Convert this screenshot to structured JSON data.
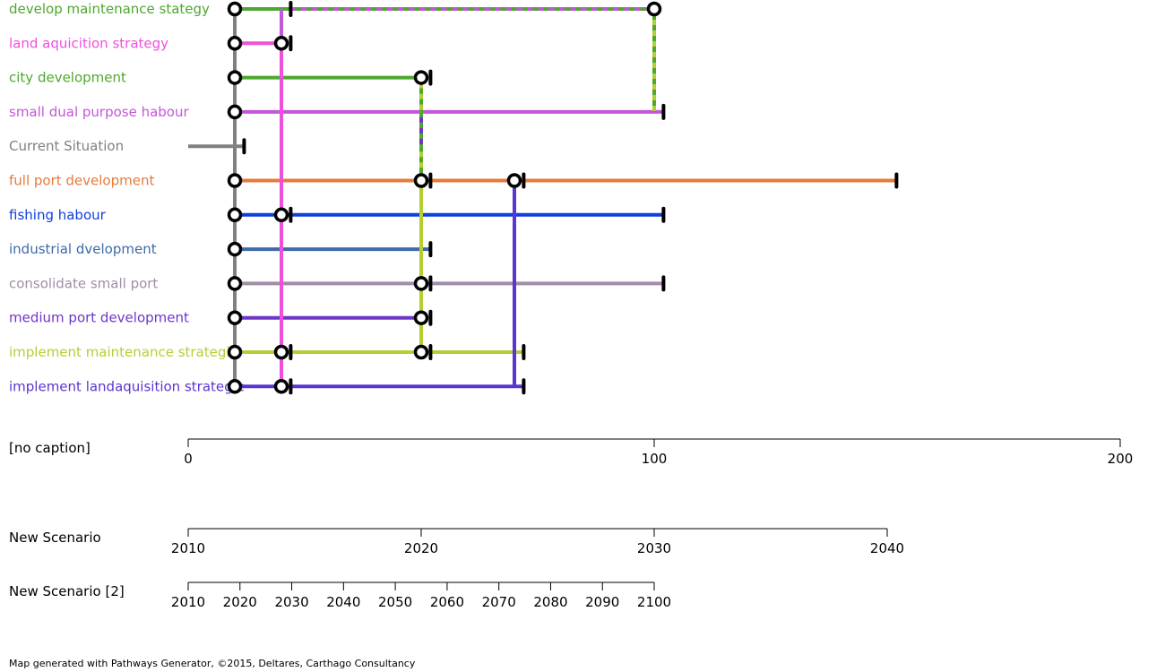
{
  "footer": "Map generated with Pathways Generator, ©2015, Deltares, Carthago Consultancy",
  "chart_data": {
    "type": "adaptation-pathways",
    "actions": [
      {
        "id": "dms",
        "label": "develop maintenance stategy",
        "color": "#4ea72e"
      },
      {
        "id": "las",
        "label": "land aquicition strategy",
        "color": "#ef4fdd"
      },
      {
        "id": "cd",
        "label": "city development",
        "color": "#4ea72e"
      },
      {
        "id": "sdph",
        "label": "small dual purpose habour",
        "color": "#c456d8"
      },
      {
        "id": "cs",
        "label": "Current Situation",
        "color": "#808080"
      },
      {
        "id": "fpd",
        "label": "full port development",
        "color": "#e67a3b"
      },
      {
        "id": "fh",
        "label": "fishing habour",
        "color": "#0f3fdc"
      },
      {
        "id": "id",
        "label": "industrial dvelopment",
        "color": "#3d6aa8"
      },
      {
        "id": "csp",
        "label": "consolidate small port",
        "color": "#a38ca8"
      },
      {
        "id": "mpd",
        "label": "medium port development",
        "color": "#6d35c8"
      },
      {
        "id": "ims",
        "label": "implement maintenance strategie",
        "color": "#b5cf32"
      },
      {
        "id": "ilas",
        "label": "implement landaquisition strategie",
        "color": "#5a35d0"
      }
    ],
    "current": {
      "row": 4,
      "end": 12
    },
    "segments": [
      {
        "row": 0,
        "from": 10,
        "to": 22,
        "color": "#4ea72e"
      },
      {
        "row": 0,
        "from": 22,
        "to": 100,
        "color": "#4ea72e",
        "dash": "#c456d8"
      },
      {
        "row": 1,
        "from": 10,
        "to": 20,
        "color": "#ef4fdd"
      },
      {
        "row": 2,
        "from": 10,
        "to": 50,
        "color": "#4ea72e"
      },
      {
        "row": 3,
        "from": 10,
        "to": 102,
        "color": "#c456d8"
      },
      {
        "row": 5,
        "from": 10,
        "to": 50,
        "color": "#e67a3b"
      },
      {
        "row": 5,
        "from": 50,
        "to": 70,
        "color": "#e67a3b"
      },
      {
        "row": 5,
        "from": 70,
        "to": 152,
        "color": "#e67a3b"
      },
      {
        "row": 6,
        "from": 10,
        "to": 20,
        "color": "#0f3fdc"
      },
      {
        "row": 6,
        "from": 20,
        "to": 102,
        "color": "#0f3fdc"
      },
      {
        "row": 7,
        "from": 10,
        "to": 52,
        "color": "#3d6aa8"
      },
      {
        "row": 8,
        "from": 10,
        "to": 50,
        "color": "#a38ca8"
      },
      {
        "row": 8,
        "from": 50,
        "to": 102,
        "color": "#a38ca8"
      },
      {
        "row": 9,
        "from": 10,
        "to": 50,
        "color": "#6d35c8"
      },
      {
        "row": 10,
        "from": 10,
        "to": 20,
        "color": "#b5cf32"
      },
      {
        "row": 10,
        "from": 20,
        "to": 50,
        "color": "#b5cf32"
      },
      {
        "row": 10,
        "from": 50,
        "to": 72,
        "color": "#b5cf32"
      },
      {
        "row": 11,
        "from": 10,
        "to": 20,
        "color": "#5a35d0"
      },
      {
        "row": 11,
        "from": 20,
        "to": 72,
        "color": "#5a35d0"
      }
    ],
    "transfers": [
      {
        "x": 10,
        "from_row": 0,
        "to_row": 11,
        "color": "#808080"
      },
      {
        "x": 20,
        "from_row": 0,
        "to_row": 1,
        "color": "#c456d8"
      },
      {
        "x": 20,
        "from_row": 1,
        "to_row": 11,
        "color": "#ef4fdd"
      },
      {
        "x": 50,
        "from_row": 2,
        "to_row": 3,
        "color": "#b5cf32",
        "dash": "#4ea72e"
      },
      {
        "x": 50,
        "from_row": 3,
        "to_row": 4,
        "color": "#6d35c8",
        "dash": "#4ea72e"
      },
      {
        "x": 50,
        "from_row": 4,
        "to_row": 5,
        "color": "#b5cf32",
        "dash": "#4ea72e"
      },
      {
        "x": 50,
        "from_row": 5,
        "to_row": 10,
        "color": "#b5cf32"
      },
      {
        "x": 70,
        "from_row": 5,
        "to_row": 11,
        "color": "#5a35d0"
      },
      {
        "x": 100,
        "from_row": 0,
        "to_row": 3,
        "color": "#4ea72e",
        "dash": "#b5cf32"
      }
    ],
    "nodes": [
      {
        "row": 0,
        "x": 10
      },
      {
        "row": 1,
        "x": 10
      },
      {
        "row": 2,
        "x": 10
      },
      {
        "row": 3,
        "x": 10
      },
      {
        "row": 5,
        "x": 10
      },
      {
        "row": 6,
        "x": 10
      },
      {
        "row": 7,
        "x": 10
      },
      {
        "row": 8,
        "x": 10
      },
      {
        "row": 9,
        "x": 10
      },
      {
        "row": 10,
        "x": 10
      },
      {
        "row": 11,
        "x": 10
      },
      {
        "row": 0,
        "x": 100
      },
      {
        "row": 1,
        "x": 20
      },
      {
        "row": 6,
        "x": 20
      },
      {
        "row": 10,
        "x": 20
      },
      {
        "row": 11,
        "x": 20
      },
      {
        "row": 2,
        "x": 50
      },
      {
        "row": 5,
        "x": 50
      },
      {
        "row": 8,
        "x": 50
      },
      {
        "row": 9,
        "x": 50
      },
      {
        "row": 10,
        "x": 50
      },
      {
        "row": 5,
        "x": 70
      }
    ],
    "terminators": [
      {
        "row": 0,
        "x": 22
      },
      {
        "row": 1,
        "x": 22
      },
      {
        "row": 2,
        "x": 52
      },
      {
        "row": 3,
        "x": 102
      },
      {
        "row": 4,
        "x": 12
      },
      {
        "row": 5,
        "x": 52
      },
      {
        "row": 5,
        "x": 72
      },
      {
        "row": 5,
        "x": 152
      },
      {
        "row": 6,
        "x": 22
      },
      {
        "row": 6,
        "x": 102
      },
      {
        "row": 7,
        "x": 52
      },
      {
        "row": 8,
        "x": 52
      },
      {
        "row": 8,
        "x": 102
      },
      {
        "row": 9,
        "x": 52
      },
      {
        "row": 10,
        "x": 22
      },
      {
        "row": 10,
        "x": 52
      },
      {
        "row": 10,
        "x": 72
      },
      {
        "row": 11,
        "x": 22
      },
      {
        "row": 11,
        "x": 72
      }
    ],
    "x_axis": {
      "min": 0,
      "max": 200
    },
    "scenarios": [
      {
        "label": "[no caption]",
        "ticks": [
          {
            "at": 0,
            "label": "0"
          },
          {
            "at": 100,
            "label": "100"
          },
          {
            "at": 200,
            "label": "200"
          }
        ]
      },
      {
        "label": "New Scenario",
        "ticks": [
          {
            "at": 0,
            "label": "2010"
          },
          {
            "at": 50,
            "label": "2020"
          },
          {
            "at": 100,
            "label": "2030"
          },
          {
            "at": 150,
            "label": "2040"
          }
        ]
      },
      {
        "label": "New Scenario [2]",
        "ticks": [
          {
            "at": 0,
            "label": "2010"
          },
          {
            "at": 11.11,
            "label": "2020"
          },
          {
            "at": 22.22,
            "label": "2030"
          },
          {
            "at": 33.33,
            "label": "2040"
          },
          {
            "at": 44.44,
            "label": "2050"
          },
          {
            "at": 55.56,
            "label": "2060"
          },
          {
            "at": 66.67,
            "label": "2070"
          },
          {
            "at": 77.78,
            "label": "2080"
          },
          {
            "at": 88.89,
            "label": "2090"
          },
          {
            "at": 100,
            "label": "2100"
          }
        ]
      }
    ]
  }
}
